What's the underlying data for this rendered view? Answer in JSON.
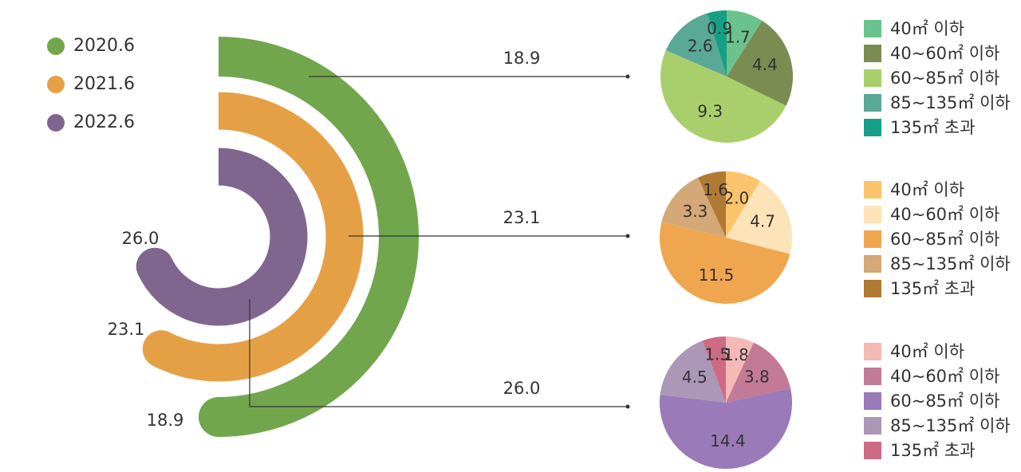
{
  "colors": {
    "y2020": "#72a64d",
    "y2021": "#e5a046",
    "y2022": "#80668f",
    "connector": "#333333"
  },
  "chart_data": [
    {
      "type": "radial-bar",
      "legend_placement": "top-left",
      "series": [
        {
          "name": "2020.6",
          "value": 18.9,
          "color": "#72a64d"
        },
        {
          "name": "2021.6",
          "value": 23.1,
          "color": "#e5a046"
        },
        {
          "name": "2022.6",
          "value": 26.0,
          "color": "#80668f"
        }
      ],
      "value_labels": [
        "26.0",
        "23.1",
        "18.9"
      ]
    },
    {
      "type": "pie",
      "total_label": "18.9",
      "legend_placement": "right",
      "slices": [
        {
          "label": "40㎡ 이하",
          "value": 1.7,
          "value_label": "1.7",
          "color": "#6cc28c"
        },
        {
          "label": "40~60㎡ 이하",
          "value": 4.4,
          "value_label": "4.4",
          "color": "#7a8c52"
        },
        {
          "label": "60~85㎡ 이하",
          "value": 9.3,
          "value_label": "9.3",
          "color": "#a9cf6c"
        },
        {
          "label": "85~135㎡ 이하",
          "value": 2.6,
          "value_label": "2.6",
          "color": "#5aa896"
        },
        {
          "label": "135㎡ 초과",
          "value": 0.9,
          "value_label": "0.9",
          "color": "#169f86"
        }
      ]
    },
    {
      "type": "pie",
      "total_label": "23.1",
      "legend_placement": "right",
      "slices": [
        {
          "label": "40㎡ 이하",
          "value": 2.0,
          "value_label": "2.0",
          "color": "#fbc46c"
        },
        {
          "label": "40~60㎡ 이하",
          "value": 4.7,
          "value_label": "4.7",
          "color": "#fde3b8"
        },
        {
          "label": "60~85㎡ 이하",
          "value": 11.5,
          "value_label": "11.5",
          "color": "#f0a64f"
        },
        {
          "label": "85~135㎡ 이하",
          "value": 3.3,
          "value_label": "3.3",
          "color": "#d4a877"
        },
        {
          "label": "135㎡ 초과",
          "value": 1.6,
          "value_label": "1.6",
          "color": "#b07a35"
        }
      ]
    },
    {
      "type": "pie",
      "total_label": "26.0",
      "legend_placement": "right",
      "slices": [
        {
          "label": "40㎡ 이하",
          "value": 1.8,
          "value_label": "1.8",
          "color": "#f5b9b7"
        },
        {
          "label": "40~60㎡ 이하",
          "value": 3.8,
          "value_label": "3.8",
          "color": "#c27a96"
        },
        {
          "label": "60~85㎡ 이하",
          "value": 14.4,
          "value_label": "14.4",
          "color": "#9a7ab8"
        },
        {
          "label": "85~135㎡ 이하",
          "value": 4.5,
          "value_label": "4.5",
          "color": "#ab97b7"
        },
        {
          "label": "135㎡ 초과",
          "value": 1.5,
          "value_label": "1.5",
          "color": "#cd6a84"
        }
      ]
    }
  ]
}
